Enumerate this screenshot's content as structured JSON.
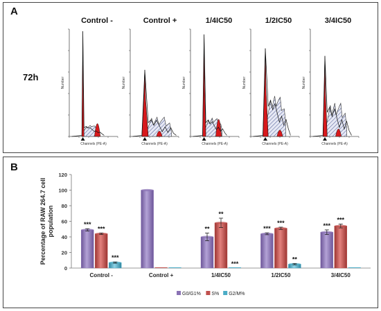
{
  "panel_a": {
    "letter": "A",
    "time_label": "72h",
    "histograms": [
      {
        "title": "Control -",
        "xlabel": "Channels (PE-A)",
        "ylabel": "Number"
      },
      {
        "title": "Control +",
        "xlabel": "Channels (PE-A)",
        "ylabel": "Number"
      },
      {
        "title": "1/4IC50",
        "xlabel": "Channels (PE-A)",
        "ylabel": "Number"
      },
      {
        "title": "1/2IC50",
        "xlabel": "Channels (PE-A)",
        "ylabel": "Number"
      },
      {
        "title": "3/4IC50",
        "xlabel": "Channels (PE-A)",
        "ylabel": "Number"
      }
    ]
  },
  "panel_b": {
    "letter": "B"
  },
  "chart_data": {
    "type": "bar",
    "title": "",
    "xlabel": "",
    "ylabel": "Percentage of RAW 264.7 cell population",
    "ylim": [
      0,
      120
    ],
    "yticks": [
      0,
      20,
      40,
      60,
      80,
      100,
      120
    ],
    "categories": [
      "Control -",
      "Control +",
      "1/4IC50",
      "1/2IC50",
      "3/4IC50"
    ],
    "grid": false,
    "legend": "bottom",
    "series": [
      {
        "name": "G0/G1%",
        "color": "#8a72b5",
        "values": [
          49,
          100,
          40,
          44,
          46
        ],
        "errors": [
          1.5,
          0,
          5,
          1.2,
          3
        ],
        "marks": [
          "***",
          "",
          "**",
          "***",
          "***"
        ]
      },
      {
        "name": "S%",
        "color": "#c0504d",
        "values": [
          44,
          0,
          58,
          51,
          54
        ],
        "errors": [
          1,
          0,
          6,
          1.5,
          2.5
        ],
        "marks": [
          "***",
          "",
          "**",
          "***",
          "***"
        ]
      },
      {
        "name": "G2/M%",
        "color": "#4bacc6",
        "values": [
          7,
          0,
          0,
          5,
          0
        ],
        "errors": [
          0.8,
          0,
          0,
          0.8,
          0
        ],
        "marks": [
          "***",
          "",
          "***",
          "**",
          ""
        ]
      }
    ]
  }
}
